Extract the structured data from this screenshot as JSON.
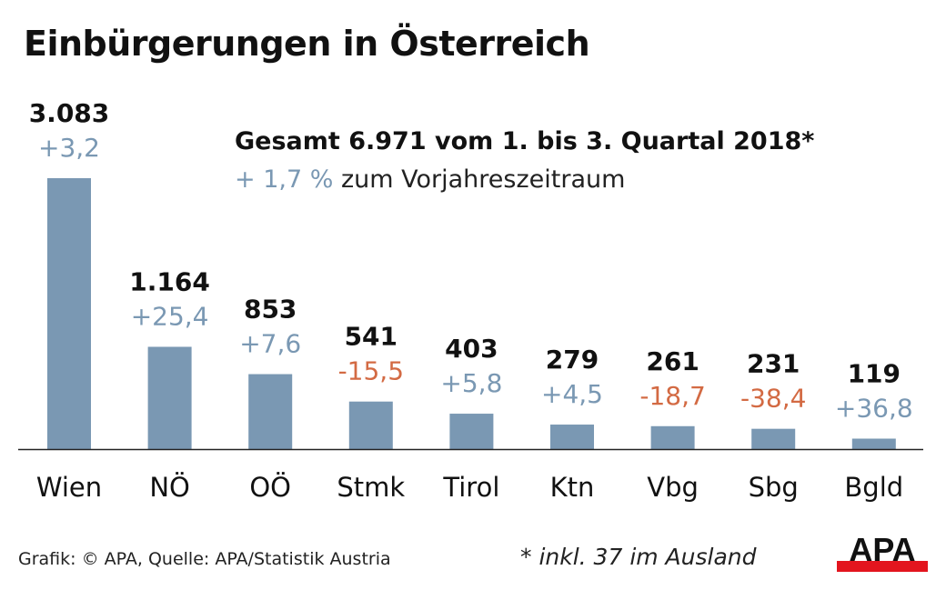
{
  "chart_data": {
    "type": "bar",
    "title": "Einbürgerungen in Österreich",
    "subtitle_total": "Gesamt 6.971 vom 1. bis 3. Quartal 2018*",
    "subtitle_change_value": "+ 1,7 %",
    "subtitle_change_text": " zum Vorjahreszeitraum",
    "categories": [
      "Wien",
      "NÖ",
      "OÖ",
      "Stmk",
      "Tirol",
      "Ktn",
      "Vbg",
      "Sbg",
      "Bgld"
    ],
    "values": [
      3083,
      1164,
      853,
      541,
      403,
      279,
      261,
      231,
      119
    ],
    "value_labels": [
      "3.083",
      "1.164",
      "853",
      "541",
      "403",
      "279",
      "261",
      "231",
      "119"
    ],
    "change_labels": [
      "+3,2",
      "+25,4",
      "+7,6",
      "-15,5",
      "+5,8",
      "+4,5",
      "-18,7",
      "-38,4",
      "+36,8"
    ],
    "changes": [
      3.2,
      25.4,
      7.6,
      -15.5,
      5.8,
      4.5,
      -18.7,
      -38.4,
      36.8
    ],
    "grid": false,
    "colors": {
      "bar": "#7a98b3",
      "positive": "#7a98b3",
      "negative": "#d36a43",
      "text": "#111111"
    }
  },
  "footer": {
    "source": "Grafik: © APA, Quelle: APA/Statistik Austria",
    "note": "* inkl. 37 im Ausland",
    "logo_text": "APA"
  }
}
